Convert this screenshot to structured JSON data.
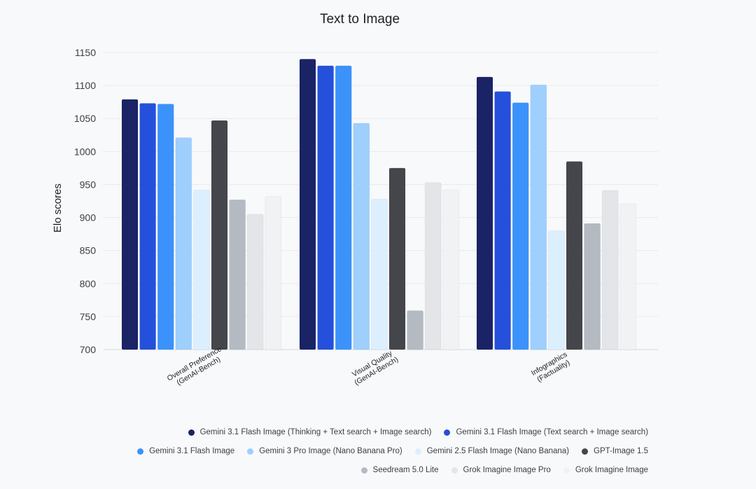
{
  "chart_data": {
    "type": "bar",
    "title": "Text to Image",
    "xlabel": "",
    "ylabel": "Elo scores",
    "ylim": [
      700,
      1150
    ],
    "yticks": [
      700,
      750,
      800,
      850,
      900,
      950,
      1000,
      1050,
      1100,
      1150
    ],
    "grid": true,
    "legend_position": "bottom-right",
    "categories": [
      [
        "Overall Preference",
        "(GenAI-Bench)"
      ],
      [
        "Visual Quality",
        "(GenAI-Bench)"
      ],
      [
        "Infographics",
        "(Factuality)"
      ]
    ],
    "series": [
      {
        "name": "Gemini 3.1 Flash Image (Thinking + Text search + Image search)",
        "color": "#1a2366",
        "values": [
          1079,
          1140,
          1113
        ]
      },
      {
        "name": "Gemini 3.1 Flash Image (Text search + Image search)",
        "color": "#2550db",
        "values": [
          1073,
          1130,
          1091
        ]
      },
      {
        "name": "Gemini 3.1 Flash Image",
        "color": "#3b92fb",
        "values": [
          1072,
          1130,
          1074
        ]
      },
      {
        "name": "Gemini 3 Pro Image (Nano Banana Pro)",
        "color": "#9ecffd",
        "values": [
          1021,
          1043,
          1101
        ]
      },
      {
        "name": "Gemini 2.5 Flash Image (Nano Banana)",
        "color": "#dcefff",
        "values": [
          942,
          928,
          880
        ]
      },
      {
        "name": "GPT-Image 1.5",
        "color": "#45464b",
        "values": [
          1047,
          975,
          985
        ]
      },
      {
        "name": "Seedream 5.0 Lite",
        "color": "#b3bac2",
        "values": [
          927,
          759,
          891
        ]
      },
      {
        "name": "Grok Imagine Image Pro",
        "color": "#e3e5e8",
        "values": [
          905,
          953,
          941
        ]
      },
      {
        "name": "Grok Imagine Image",
        "color": "#f1f2f4",
        "values": [
          932,
          942,
          921
        ]
      }
    ]
  }
}
